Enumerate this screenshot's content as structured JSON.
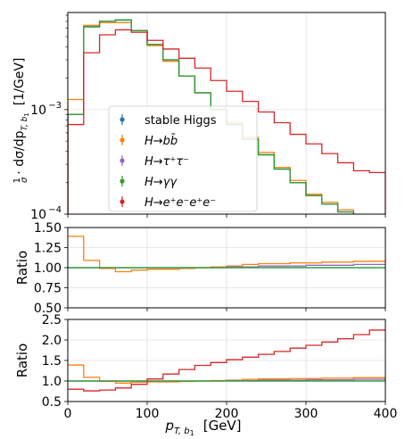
{
  "chart_data": {
    "type": "line",
    "drawstyle": "steps",
    "x_edges": [
      0,
      20,
      40,
      60,
      80,
      100,
      120,
      140,
      160,
      180,
      200,
      220,
      240,
      260,
      280,
      300,
      320,
      340,
      360,
      380,
      400
    ],
    "xlim": [
      0,
      400
    ],
    "x_ticks": [
      "0",
      "100",
      "200",
      "300",
      "400"
    ],
    "xlabel_main": "p",
    "xlabel_sub": "T, b",
    "xlabel_subsub": "1",
    "xlabel_unit": "[GeV]",
    "grid": true,
    "legend_position": "center-left",
    "series": [
      {
        "name": "stable Higgs",
        "color": "#1f77b4"
      },
      {
        "name": "H→bb̄",
        "color": "#ff7f0e"
      },
      {
        "name": "H→τ⁺τ⁻",
        "color": "#9467bd"
      },
      {
        "name": "H→γγ",
        "color": "#2ca02c"
      },
      {
        "name": "H→e⁺e⁻e⁺e⁻",
        "color": "#d62728"
      }
    ],
    "panels": [
      {
        "kind": "distribution",
        "yscale": "log",
        "ylim": [
          0.0001,
          0.0085
        ],
        "y_ticks": [
          {
            "value": 0.0001,
            "label": "10",
            "exp": "−4"
          },
          {
            "value": 0.001,
            "label": "10",
            "exp": "−3"
          }
        ],
        "ylabel_parts": [
          "1",
          "σ",
          "· dσ/dp",
          "T, b",
          "1",
          "[1/GeV]"
        ],
        "values": [
          [
            0.0009,
            0.0062,
            0.007,
            0.0072,
            0.0057,
            0.0042,
            0.003,
            0.0021,
            0.00145,
            0.001,
            0.00072,
            0.00052,
            0.00037,
            0.00027,
            0.0002,
            0.00015,
            0.000125,
            0.000105,
            9e-05,
            8.5e-05
          ],
          [
            0.00125,
            0.0064,
            0.0068,
            0.0068,
            0.0055,
            0.0041,
            0.0029,
            0.0021,
            0.00145,
            0.001,
            0.00075,
            0.00054,
            0.00039,
            0.00028,
            0.00021,
            0.000155,
            0.00013,
            0.00011,
            9.5e-05,
            9e-05
          ],
          [
            0.0009,
            0.0062,
            0.007,
            0.0072,
            0.0057,
            0.0042,
            0.003,
            0.0021,
            0.00145,
            0.001,
            0.00072,
            0.00052,
            0.00037,
            0.00027,
            0.0002,
            0.00015,
            0.000125,
            0.000105,
            9e-05,
            8.5e-05
          ],
          [
            0.0009,
            0.0062,
            0.007,
            0.0072,
            0.0057,
            0.0042,
            0.003,
            0.0021,
            0.00145,
            0.001,
            0.00072,
            0.00052,
            0.00037,
            0.00027,
            0.0002,
            0.00015,
            0.000125,
            0.000105,
            9e-05,
            8.5e-05
          ],
          [
            0.00072,
            0.0035,
            0.0052,
            0.0058,
            0.0055,
            0.0046,
            0.0038,
            0.0031,
            0.0025,
            0.0019,
            0.0015,
            0.0012,
            0.00095,
            0.00075,
            0.00058,
            0.00047,
            0.00038,
            0.00031,
            0.00026,
            0.00025
          ]
        ]
      },
      {
        "kind": "ratio",
        "ylim": [
          0.5,
          1.5
        ],
        "y_ticks": [
          "0.50",
          "0.75",
          "1.00",
          "1.25",
          "1.50"
        ],
        "ylabel": "Ratio",
        "values": [
          [
            1,
            1,
            1,
            1,
            1,
            1,
            1,
            1,
            1,
            1,
            1,
            1,
            1,
            1,
            1,
            1,
            1,
            1,
            1,
            1
          ],
          [
            1.39,
            1.09,
            0.99,
            0.95,
            0.97,
            0.98,
            0.98,
            0.99,
            1.0,
            1.01,
            1.02,
            1.04,
            1.05,
            1.05,
            1.06,
            1.06,
            1.07,
            1.07,
            1.08,
            1.08
          ],
          [
            1.0,
            1.0,
            1.0,
            1.0,
            1.0,
            1.0,
            1.0,
            1.0,
            1.0,
            1.0,
            1.01,
            1.01,
            1.02,
            1.02,
            1.02,
            1.03,
            1.03,
            1.03,
            1.04,
            1.04
          ],
          [
            1,
            1,
            1,
            1,
            1,
            1,
            1,
            1,
            1,
            1,
            1,
            1,
            1,
            1,
            1,
            1,
            1,
            1,
            1,
            1
          ],
          []
        ]
      },
      {
        "kind": "ratio",
        "ylim": [
          0.5,
          2.5
        ],
        "y_ticks": [
          "0.5",
          "1.0",
          "1.5",
          "2.0",
          "2.5"
        ],
        "ylabel": "Ratio",
        "values": [
          [
            1,
            1,
            1,
            1,
            1,
            1,
            1,
            1,
            1,
            1,
            1,
            1,
            1,
            1,
            1,
            1,
            1,
            1,
            1,
            1
          ],
          [
            1.39,
            1.09,
            0.99,
            0.95,
            0.97,
            0.98,
            0.98,
            0.99,
            1.0,
            1.01,
            1.02,
            1.04,
            1.05,
            1.05,
            1.06,
            1.06,
            1.07,
            1.07,
            1.08,
            1.08
          ],
          [
            1.0,
            1.0,
            1.0,
            1.0,
            1.0,
            1.0,
            1.0,
            1.0,
            1.0,
            1.0,
            1.01,
            1.01,
            1.02,
            1.02,
            1.02,
            1.03,
            1.03,
            1.03,
            1.04,
            1.04
          ],
          [
            1,
            1,
            1,
            1,
            1,
            1,
            1,
            1,
            1,
            1,
            1,
            1,
            1,
            1,
            1,
            1,
            1,
            1,
            1,
            1
          ],
          [
            0.8,
            0.76,
            0.78,
            0.83,
            0.92,
            1.05,
            1.17,
            1.28,
            1.38,
            1.45,
            1.52,
            1.58,
            1.65,
            1.72,
            1.8,
            1.87,
            1.95,
            2.03,
            2.13,
            2.24
          ]
        ]
      }
    ]
  }
}
